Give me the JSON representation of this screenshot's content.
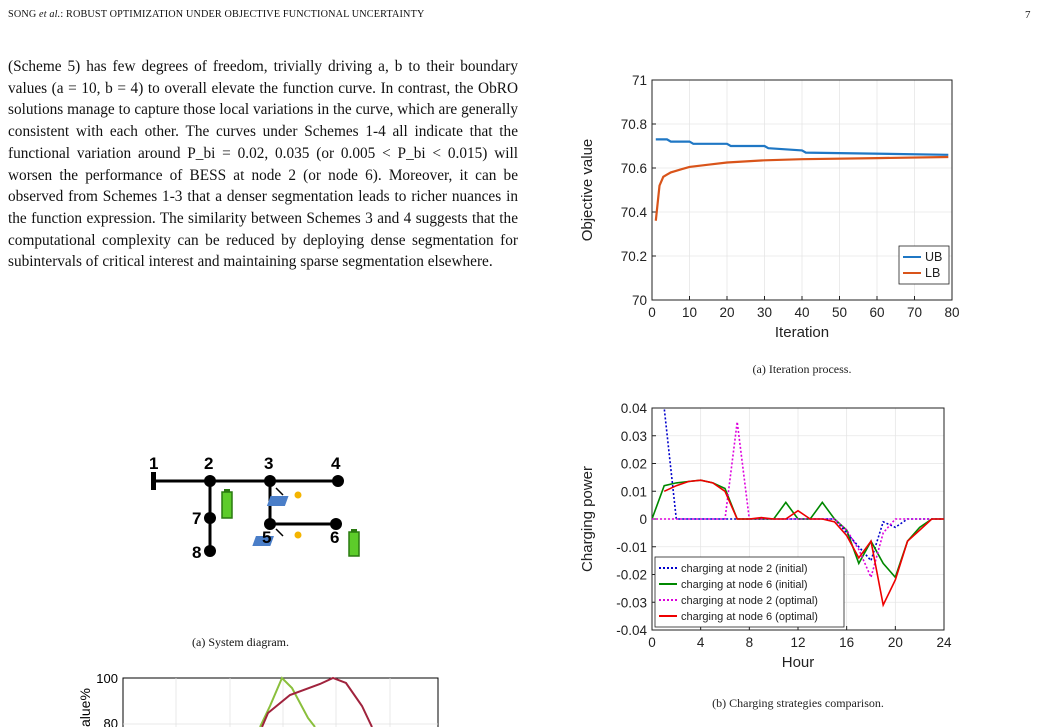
{
  "header": {
    "left_pre": "SONG ",
    "left_em": "et al.",
    "left_post": ": ROBUST OPTIMIZATION UNDER OBJECTIVE FUNCTIONAL UNCERTAINTY",
    "page_number": "7"
  },
  "body_paragraph": "(Scheme 5) has few degrees of freedom, trivially driving a, b to their boundary values (a = 10, b = 4) to overall elevate the function curve. In contrast, the ObRO solutions manage to capture those local variations in the curve, which are generally consistent with each other. The curves under Schemes 1-4 all indicate that the functional variation around P_bi = 0.02, 0.035 (or 0.005 < P_bi < 0.015) will worsen the performance of BESS at node 2 (or node 6). Moreover, it can be observed from Schemes 1-3 that a denser segmentation leads to richer nuances in the function expression. The similarity between Schemes 3 and 4 suggests that the computational complexity can be reduced by deploying dense segmentation for subintervals of critical interest and maintaining sparse segmentation elsewhere.",
  "system_diagram": {
    "caption": "(a) System diagram.",
    "nodes": [
      "1",
      "2",
      "3",
      "4",
      "5",
      "6",
      "7",
      "8"
    ]
  },
  "bottom_partial": {
    "ylabel_fragment": "alue%",
    "ticks": [
      "100",
      "80"
    ]
  },
  "chart_data": [
    {
      "type": "line",
      "caption": "(a) Iteration process.",
      "xlabel": "Iteration",
      "ylabel": "Objective value",
      "xlim": [
        0,
        80
      ],
      "ylim": [
        70,
        71
      ],
      "xticks": [
        "0",
        "10",
        "20",
        "30",
        "40",
        "50",
        "60",
        "70",
        "80"
      ],
      "yticks": [
        "70",
        "70.2",
        "70.4",
        "70.6",
        "70.8",
        "71"
      ],
      "grid": true,
      "legend_position": "bottom-right",
      "series": [
        {
          "name": "UB",
          "color": "#1f77c4",
          "x": [
            1,
            4,
            5,
            10,
            11,
            20,
            21,
            30,
            31,
            40,
            41,
            79
          ],
          "y": [
            70.73,
            70.73,
            70.72,
            70.72,
            70.71,
            70.71,
            70.7,
            70.7,
            70.69,
            70.68,
            70.67,
            70.66
          ]
        },
        {
          "name": "LB",
          "color": "#d9541a",
          "x": [
            1,
            2,
            3,
            4,
            5,
            6,
            8,
            10,
            15,
            20,
            30,
            40,
            60,
            79
          ],
          "y": [
            70.36,
            70.52,
            70.56,
            70.57,
            70.58,
            70.585,
            70.595,
            70.605,
            70.615,
            70.625,
            70.635,
            70.64,
            70.645,
            70.65
          ]
        }
      ]
    },
    {
      "type": "line",
      "caption": "(b) Charging strategies comparison.",
      "xlabel": "Hour",
      "ylabel": "Charging power",
      "xlim": [
        0,
        24
      ],
      "ylim": [
        -0.04,
        0.04
      ],
      "xticks": [
        "0",
        "4",
        "8",
        "12",
        "16",
        "20",
        "24"
      ],
      "yticks": [
        "-0.04",
        "-0.03",
        "-0.02",
        "-0.01",
        "0",
        "0.01",
        "0.02",
        "0.03",
        "0.04"
      ],
      "grid": true,
      "legend_position": "bottom-left",
      "series": [
        {
          "name": "charging at node 2 (initial)",
          "color": "#0000cc",
          "dash": "2,2",
          "x": [
            0,
            1,
            2,
            3,
            8,
            15,
            16,
            17,
            18,
            19,
            20,
            21,
            22,
            23,
            24
          ],
          "y": [
            0.045,
            0.04,
            0,
            0,
            0,
            0,
            -0.005,
            -0.01,
            -0.015,
            -0.001,
            -0.003,
            0,
            0,
            0,
            0
          ]
        },
        {
          "name": "charging at node 6 (initial)",
          "color": "#008800",
          "x": [
            0,
            1,
            2,
            3,
            4,
            5,
            6,
            7,
            8,
            9,
            10,
            11,
            12,
            13,
            14,
            15,
            16,
            17,
            18,
            19,
            20,
            21,
            22,
            23,
            24
          ],
          "y": [
            0,
            0.012,
            0.013,
            0.0135,
            0.014,
            0.013,
            0.011,
            0,
            0,
            0,
            0,
            0.006,
            0,
            0,
            0.006,
            0,
            -0.004,
            -0.016,
            -0.008,
            -0.016,
            -0.021,
            -0.008,
            -0.003,
            0,
            0
          ]
        },
        {
          "name": "charging at node 2 (optimal)",
          "color": "#dd00dd",
          "dash": "2,2",
          "x": [
            0,
            6,
            7,
            8,
            15,
            16,
            17,
            18,
            19,
            20,
            21,
            22,
            23,
            24
          ],
          "y": [
            0,
            0,
            0.035,
            0,
            0,
            -0.004,
            -0.011,
            -0.021,
            -0.005,
            0,
            0,
            0,
            0,
            0
          ]
        },
        {
          "name": "charging at node 6 (optimal)",
          "color": "#ee0000",
          "x": [
            1,
            2,
            3,
            4,
            5,
            6,
            7,
            8,
            9,
            10,
            11,
            12,
            13,
            14,
            15,
            16,
            17,
            18,
            19,
            20,
            21,
            22,
            23,
            24
          ],
          "y": [
            0.01,
            0.012,
            0.0135,
            0.014,
            0.013,
            0.01,
            0,
            0,
            0.0005,
            0,
            0,
            0.003,
            0,
            0,
            -0.001,
            -0.006,
            -0.014,
            -0.008,
            -0.031,
            -0.022,
            -0.008,
            -0.004,
            0,
            0
          ]
        }
      ]
    }
  ]
}
